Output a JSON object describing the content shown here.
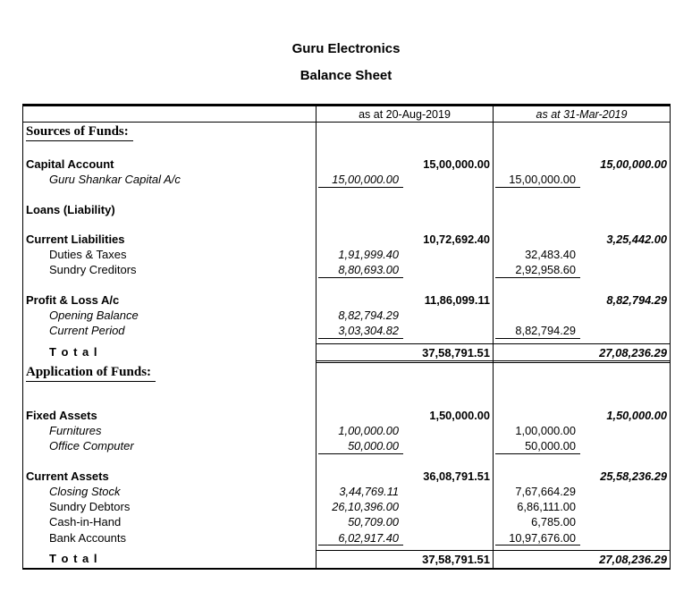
{
  "title": "Guru Electronics",
  "subtitle": "Balance Sheet",
  "colors": {
    "text": "#000000",
    "background": "#ffffff",
    "border": "#000000"
  },
  "table": {
    "col_headers": [
      "as at 20-Aug-2019",
      "as at 31-Mar-2019"
    ],
    "sections": [
      {
        "heading": "Sources of Funds:",
        "rows": [
          {
            "label": "Capital Account",
            "c1_main": "15,00,000.00",
            "c2_main": "15,00,000.00"
          },
          {
            "label": "Guru Shankar Capital A/c",
            "c1_sub": "15,00,000.00",
            "c2_sub": "15,00,000.00"
          },
          {
            "label": "Loans (Liability)"
          },
          {
            "label": "Current Liabilities",
            "c1_main": "10,72,692.40",
            "c2_main": "3,25,442.00"
          },
          {
            "label": "Duties & Taxes",
            "c1_sub": "1,91,999.40",
            "c2_sub": "32,483.40"
          },
          {
            "label": "Sundry Creditors",
            "c1_sub": "8,80,693.00",
            "c2_sub": "2,92,958.60"
          },
          {
            "label": "Profit & Loss A/c",
            "c1_main": "11,86,099.11",
            "c2_main": "8,82,794.29"
          },
          {
            "label": "Opening Balance",
            "c1_sub": "8,82,794.29"
          },
          {
            "label": "Current Period",
            "c1_sub": "3,03,304.82",
            "c2_sub": "8,82,794.29"
          }
        ],
        "total": {
          "label": "T o t a l",
          "c1": "37,58,791.51",
          "c2": "27,08,236.29"
        }
      },
      {
        "heading": "Application of Funds:",
        "rows": [
          {
            "label": "Fixed Assets",
            "c1_main": "1,50,000.00",
            "c2_main": "1,50,000.00"
          },
          {
            "label": "Furnitures",
            "c1_sub": "1,00,000.00",
            "c2_sub": "1,00,000.00"
          },
          {
            "label": "Office Computer",
            "c1_sub": "50,000.00",
            "c2_sub": "50,000.00"
          },
          {
            "label": "Current Assets",
            "c1_main": "36,08,791.51",
            "c2_main": "25,58,236.29"
          },
          {
            "label": "Closing Stock",
            "c1_sub": "3,44,769.11",
            "c2_sub": "7,67,664.29"
          },
          {
            "label": "Sundry Debtors",
            "c1_sub": "26,10,396.00",
            "c2_sub": "6,86,111.00"
          },
          {
            "label": "Cash-in-Hand",
            "c1_sub": "50,709.00",
            "c2_sub": "6,785.00"
          },
          {
            "label": "Bank Accounts",
            "c1_sub": "6,02,917.40",
            "c2_sub": "10,97,676.00"
          }
        ],
        "total": {
          "label": "T o t a l",
          "c1": "37,58,791.51",
          "c2": "27,08,236.29"
        }
      }
    ]
  }
}
